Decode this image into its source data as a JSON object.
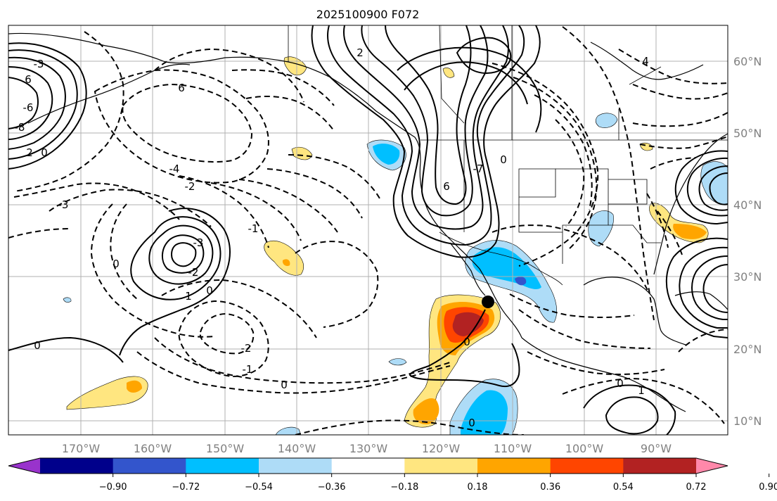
{
  "title": "2025100900 F072",
  "lon_labels": [
    "170°W",
    "160°W",
    "150°W",
    "140°W",
    "130°W",
    "120°W",
    "110°W",
    "100°W",
    "90°W"
  ],
  "lat_labels": [
    "60°N",
    "50°N",
    "40°N",
    "30°N",
    "20°N",
    "10°N"
  ],
  "colorbar": {
    "colors": [
      "#9933cc",
      "#00008b",
      "#3355cc",
      "#00bfff",
      "#aedcf7",
      "#ffffff",
      "#ffe680",
      "#ffa500",
      "#ff4500",
      "#b22222",
      "#ff88aa"
    ],
    "tick_labels": [
      "−0.90",
      "−0.72",
      "−0.54",
      "−0.36",
      "−0.18",
      "0.18",
      "0.36",
      "0.54",
      "0.72",
      "0.90"
    ]
  },
  "contour_labels": [
    "6",
    "-3",
    "0",
    "-8",
    "2",
    "-6",
    "6",
    "2",
    "4",
    "-4",
    "-2",
    "-3",
    "0",
    "-3",
    "-1",
    "0",
    "1",
    "-2",
    "-2",
    "-1",
    "0",
    "0",
    "6",
    "-7",
    "0",
    "0",
    "0",
    "1",
    "0"
  ],
  "marker": {
    "name": "storm-center",
    "lon": -113.5,
    "lat": 26.5
  }
}
